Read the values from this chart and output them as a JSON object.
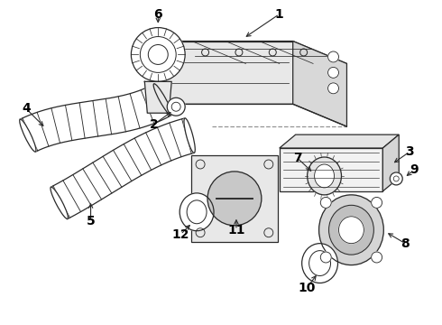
{
  "bg_color": "#ffffff",
  "line_color": "#2a2a2a",
  "label_color": "#000000",
  "figsize": [
    4.9,
    3.6
  ],
  "dpi": 100,
  "lw": 0.9
}
